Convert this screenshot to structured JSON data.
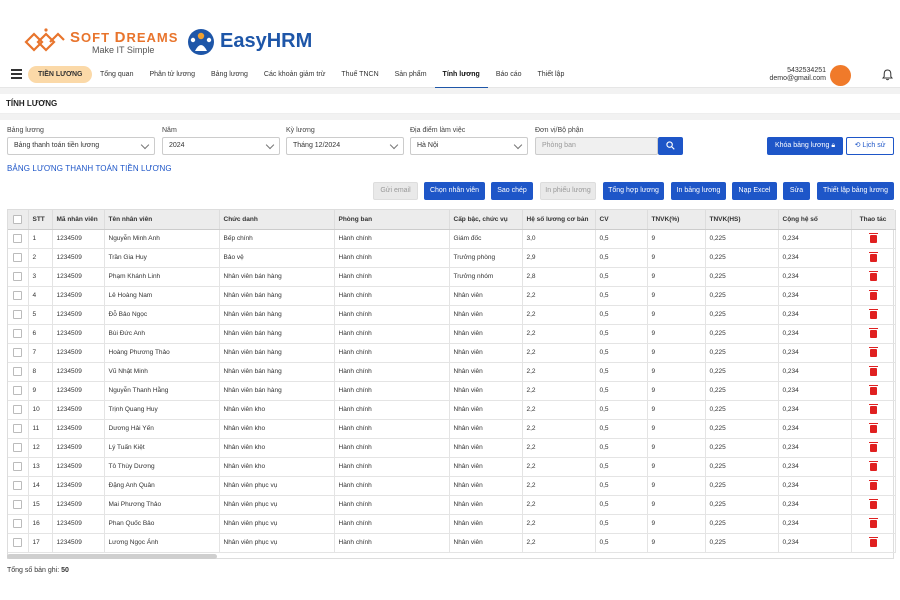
{
  "brand": {
    "softdreams_name_a": "S",
    "softdreams_name_b": "OFT ",
    "softdreams_name_c": "D",
    "softdreams_name_d": "REAMS",
    "softdreams_tagline": "Make IT Simple",
    "easyhrm_name": "EasyHRM"
  },
  "topnav": {
    "module": "TIỀN LƯƠNG",
    "items": [
      "Tổng quan",
      "Phân tử lương",
      "Bảng lương",
      "Các khoản giảm trừ",
      "Thuế TNCN",
      "Sản phẩm",
      "Tính lương",
      "Báo cáo",
      "Thiết lập"
    ],
    "active_index": 6,
    "account_phone": "5432534251",
    "account_email": "demo@gmail.com",
    "avatar_color": "#f07a2a"
  },
  "page": {
    "title": "TÍNH LƯƠNG"
  },
  "filters": {
    "payroll_label": "Bảng lương",
    "payroll_value": "Bảng thanh toán tiền lương",
    "year_label": "Năm",
    "year_value": "2024",
    "period_label": "Kỳ lương",
    "period_value": "Tháng 12/2024",
    "location_label": "Địa điểm làm việc",
    "location_value": "Hà Nội",
    "unit_label": "Đơn vị/Bộ phận",
    "unit_placeholder": "Phòng ban",
    "lock_button": "Khóa bảng lương",
    "history_button": "Lịch sử"
  },
  "section_title": "BẢNG LƯƠNG THANH TOÁN TIỀN LƯƠNG",
  "actions": {
    "send_email": "Gửi email",
    "choose_employee": "Chọn nhân viên",
    "copy": "Sao chép",
    "print_slip": "In phiếu lương",
    "summary": "Tổng hợp lương",
    "print_table": "In bảng lương",
    "import_excel": "Nạp Excel",
    "edit": "Sửa",
    "setup": "Thiết lập bảng lương"
  },
  "table": {
    "headers": [
      "STT",
      "Mã nhân viên",
      "Tên nhân viên",
      "Chức danh",
      "Phòng ban",
      "Cấp bậc, chức vụ",
      "Hệ số lương cơ bản",
      "CV",
      "TNVK(%)",
      "TNVK(HS)",
      "Cộng hệ số",
      "Thao tác"
    ],
    "rows": [
      [
        "1",
        "1234509",
        "Nguyễn Minh Anh",
        "Bếp chính",
        "Hành chính",
        "Giám đốc",
        "3,0",
        "0,5",
        "9",
        "0,225",
        "0,234"
      ],
      [
        "2",
        "1234509",
        "Trần Gia Huy",
        "Bảo vệ",
        "Hành chính",
        "Trưởng phòng",
        "2,9",
        "0,5",
        "9",
        "0,225",
        "0,234"
      ],
      [
        "3",
        "1234509",
        "Phạm Khánh Linh",
        "Nhân viên bán hàng",
        "Hành chính",
        "Trưởng nhóm",
        "2,8",
        "0,5",
        "9",
        "0,225",
        "0,234"
      ],
      [
        "4",
        "1234509",
        "Lê Hoàng Nam",
        "Nhân viên bán hàng",
        "Hành chính",
        "Nhân viên",
        "2,2",
        "0,5",
        "9",
        "0,225",
        "0,234"
      ],
      [
        "5",
        "1234509",
        "Đỗ Bảo Ngọc",
        "Nhân viên bán hàng",
        "Hành chính",
        "Nhân viên",
        "2,2",
        "0,5",
        "9",
        "0,225",
        "0,234"
      ],
      [
        "6",
        "1234509",
        "Bùi Đức Anh",
        "Nhân viên bán hàng",
        "Hành chính",
        "Nhân viên",
        "2,2",
        "0,5",
        "9",
        "0,225",
        "0,234"
      ],
      [
        "7",
        "1234509",
        "Hoàng Phương Thảo",
        "Nhân viên bán hàng",
        "Hành chính",
        "Nhân viên",
        "2,2",
        "0,5",
        "9",
        "0,225",
        "0,234"
      ],
      [
        "8",
        "1234509",
        "Vũ Nhật Minh",
        "Nhân viên bán hàng",
        "Hành chính",
        "Nhân viên",
        "2,2",
        "0,5",
        "9",
        "0,225",
        "0,234"
      ],
      [
        "9",
        "1234509",
        "Nguyễn Thanh Hằng",
        "Nhân viên bán hàng",
        "Hành chính",
        "Nhân viên",
        "2,2",
        "0,5",
        "9",
        "0,225",
        "0,234"
      ],
      [
        "10",
        "1234509",
        "Trịnh Quang Huy",
        "Nhân viên kho",
        "Hành chính",
        "Nhân viên",
        "2,2",
        "0,5",
        "9",
        "0,225",
        "0,234"
      ],
      [
        "11",
        "1234509",
        "Dương Hải Yến",
        "Nhân viên kho",
        "Hành chính",
        "Nhân viên",
        "2,2",
        "0,5",
        "9",
        "0,225",
        "0,234"
      ],
      [
        "12",
        "1234509",
        "Lý Tuấn Kiệt",
        "Nhân viên kho",
        "Hành chính",
        "Nhân viên",
        "2,2",
        "0,5",
        "9",
        "0,225",
        "0,234"
      ],
      [
        "13",
        "1234509",
        "Tô Thùy Dương",
        "Nhân viên kho",
        "Hành chính",
        "Nhân viên",
        "2,2",
        "0,5",
        "9",
        "0,225",
        "0,234"
      ],
      [
        "14",
        "1234509",
        "Đặng Anh Quân",
        "Nhân viên phục vụ",
        "Hành chính",
        "Nhân viên",
        "2,2",
        "0,5",
        "9",
        "0,225",
        "0,234"
      ],
      [
        "15",
        "1234509",
        "Mai Phương Thảo",
        "Nhân viên phục vụ",
        "Hành chính",
        "Nhân viên",
        "2,2",
        "0,5",
        "9",
        "0,225",
        "0,234"
      ],
      [
        "16",
        "1234509",
        "Phan Quốc Bảo",
        "Nhân viên phục vụ",
        "Hành chính",
        "Nhân viên",
        "2,2",
        "0,5",
        "9",
        "0,225",
        "0,234"
      ],
      [
        "17",
        "1234509",
        "Lương Ngọc Ánh",
        "Nhân viên phục vụ",
        "Hành chính",
        "Nhân viên",
        "2,2",
        "0,5",
        "9",
        "0,225",
        "0,234"
      ]
    ]
  },
  "footer": {
    "total_label": "Tổng số bản ghi:",
    "total_value": "50"
  },
  "colors": {
    "primary": "#1e56c8",
    "accent": "#e8742c",
    "pill": "#fbd9a8",
    "danger": "#e02020"
  }
}
